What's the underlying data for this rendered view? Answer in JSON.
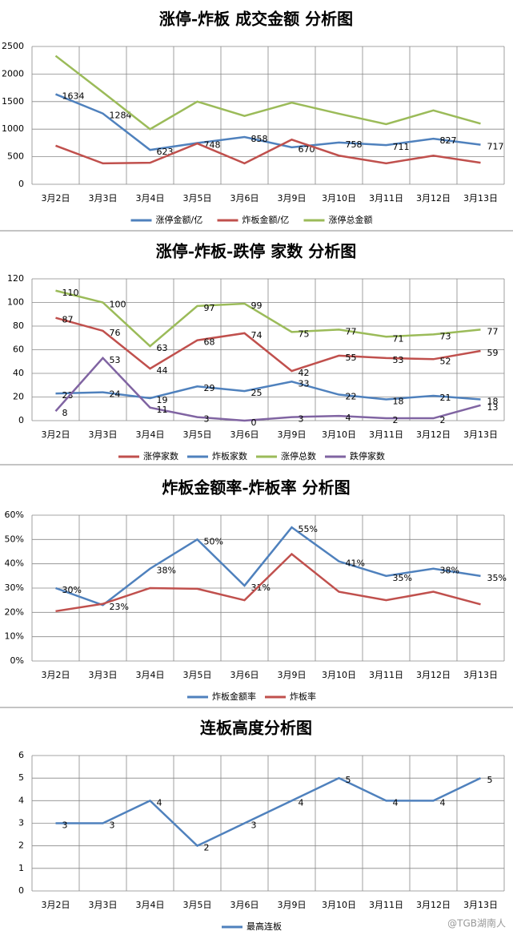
{
  "chart_data": [
    {
      "type": "line",
      "title": "涨停-炸板 成交金额 分析图",
      "categories": [
        "3月2日",
        "3月3日",
        "3月4日",
        "3月5日",
        "3月6日",
        "3月9日",
        "3月10日",
        "3月11日",
        "3月12日",
        "3月13日"
      ],
      "series": [
        {
          "name": "涨停金额/亿",
          "color": "#4f81bd",
          "show_values": true,
          "values": [
            1634,
            1284,
            623,
            748,
            858,
            670,
            758,
            711,
            827,
            717
          ]
        },
        {
          "name": "炸板金额/亿",
          "color": "#c0504d",
          "values": [
            700,
            380,
            390,
            740,
            380,
            810,
            520,
            380,
            520,
            390
          ]
        },
        {
          "name": "涨停总金额",
          "color": "#9bbb59",
          "values": [
            2330,
            1670,
            1000,
            1500,
            1240,
            1480,
            1280,
            1090,
            1340,
            1100
          ]
        }
      ],
      "ylim": [
        0,
        2500
      ],
      "yticks": [
        0,
        500,
        1000,
        1500,
        2000,
        2500
      ],
      "grid": true,
      "legend": "bottom"
    },
    {
      "type": "line",
      "title": "涨停-炸板-跌停 家数 分析图",
      "categories": [
        "3月2日",
        "3月3日",
        "3月4日",
        "3月5日",
        "3月6日",
        "3月9日",
        "3月10日",
        "3月11日",
        "3月12日",
        "3月13日"
      ],
      "series": [
        {
          "name": "涨停家数",
          "color": "#c0504d",
          "show_values": true,
          "values": [
            87,
            76,
            44,
            68,
            74,
            42,
            55,
            53,
            52,
            59
          ]
        },
        {
          "name": "炸板家数",
          "color": "#4f81bd",
          "show_values": true,
          "values": [
            23,
            24,
            19,
            29,
            25,
            33,
            22,
            18,
            21,
            18
          ]
        },
        {
          "name": "涨停总数",
          "color": "#9bbb59",
          "show_values": true,
          "values": [
            110,
            100,
            63,
            97,
            99,
            75,
            77,
            71,
            73,
            77
          ]
        },
        {
          "name": "跌停家数",
          "color": "#8064a2",
          "show_values": true,
          "values": [
            8,
            53,
            11,
            3,
            0,
            3,
            4,
            2,
            2,
            13
          ]
        }
      ],
      "ylim": [
        0,
        120
      ],
      "yticks": [
        0,
        20,
        40,
        60,
        80,
        100,
        120
      ],
      "grid": true,
      "legend": "bottom"
    },
    {
      "type": "line",
      "title": "炸板金额率-炸板率 分析图",
      "categories": [
        "3月2日",
        "3月3日",
        "3月4日",
        "3月5日",
        "3月6日",
        "3月9日",
        "3月10日",
        "3月11日",
        "3月12日",
        "3月13日"
      ],
      "series": [
        {
          "name": "炸板金额率",
          "color": "#4f81bd",
          "show_values": true,
          "values": [
            30,
            23,
            38,
            50,
            31,
            55,
            41,
            35,
            38,
            35
          ],
          "value_labels": [
            "30%",
            "23%",
            "38%",
            "50%",
            "31%",
            "55%",
            "41%",
            "35%",
            "38%",
            "35%"
          ]
        },
        {
          "name": "炸板率",
          "color": "#c0504d",
          "values": [
            20.5,
            23.5,
            30,
            29.7,
            25,
            44,
            28.5,
            25,
            28.5,
            23.3
          ]
        }
      ],
      "ylim": [
        0,
        60
      ],
      "yticks": [
        {
          "value": 0,
          "label": "0%"
        },
        {
          "value": 10,
          "label": "10%"
        },
        {
          "value": 20,
          "label": "20%"
        },
        {
          "value": 30,
          "label": "30%"
        },
        {
          "value": 40,
          "label": "40%"
        },
        {
          "value": 50,
          "label": "50%"
        },
        {
          "value": 60,
          "label": "60%"
        }
      ],
      "grid": true,
      "legend": "bottom"
    },
    {
      "type": "line",
      "title": "连板高度分析图",
      "categories": [
        "3月2日",
        "3月3日",
        "3月4日",
        "3月5日",
        "3月6日",
        "3月9日",
        "3月10日",
        "3月11日",
        "3月12日",
        "3月13日"
      ],
      "series": [
        {
          "name": "最高连板",
          "color": "#4f81bd",
          "show_values": true,
          "values": [
            3,
            3,
            4,
            2,
            3,
            4,
            5,
            4,
            4,
            5
          ]
        }
      ],
      "ylim": [
        0,
        6
      ],
      "yticks": [
        0,
        1,
        2,
        3,
        4,
        5,
        6
      ],
      "grid": true,
      "legend": "bottom"
    }
  ],
  "watermark": "@TGB湖南人"
}
